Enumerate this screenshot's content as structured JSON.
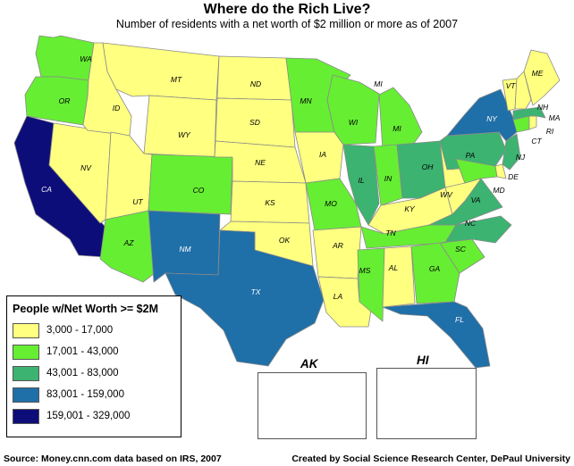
{
  "header": {
    "title": "Where do the Rich Live?",
    "subtitle": "Number of residents with a net worth of $2 million or more as of 2007"
  },
  "colors": {
    "c1": "#ffff80",
    "c2": "#66ee33",
    "c3": "#3cb371",
    "c4": "#1f6fa8",
    "c5": "#0d0d7a",
    "stroke": "#8a8a8a"
  },
  "legend": {
    "title": "People w/Net Worth >= $2M",
    "items": [
      {
        "label": "3,000 - 17,000",
        "cls": "c1"
      },
      {
        "label": "17,001 - 43,000",
        "cls": "c2"
      },
      {
        "label": "43,001 - 83,000",
        "cls": "c3"
      },
      {
        "label": "83,001 - 159,000",
        "cls": "c4"
      },
      {
        "label": "159,001 - 329,000",
        "cls": "c5"
      }
    ]
  },
  "insets": {
    "ak_label": "AK",
    "hi_label": "HI"
  },
  "states": [
    {
      "code": "WA",
      "cls": "c2"
    },
    {
      "code": "OR",
      "cls": "c2"
    },
    {
      "code": "CA",
      "cls": "c5"
    },
    {
      "code": "NV",
      "cls": "c1"
    },
    {
      "code": "ID",
      "cls": "c1"
    },
    {
      "code": "MT",
      "cls": "c1"
    },
    {
      "code": "WY",
      "cls": "c1"
    },
    {
      "code": "UT",
      "cls": "c1"
    },
    {
      "code": "AZ",
      "cls": "c2"
    },
    {
      "code": "CO",
      "cls": "c2"
    },
    {
      "code": "NM",
      "cls": "c4"
    },
    {
      "code": "ND",
      "cls": "c1"
    },
    {
      "code": "SD",
      "cls": "c1"
    },
    {
      "code": "NE",
      "cls": "c1"
    },
    {
      "code": "KS",
      "cls": "c1"
    },
    {
      "code": "OK",
      "cls": "c1"
    },
    {
      "code": "TX",
      "cls": "c4"
    },
    {
      "code": "MN",
      "cls": "c2"
    },
    {
      "code": "IA",
      "cls": "c1"
    },
    {
      "code": "MO",
      "cls": "c2"
    },
    {
      "code": "AR",
      "cls": "c1"
    },
    {
      "code": "LA",
      "cls": "c1"
    },
    {
      "code": "WI",
      "cls": "c2"
    },
    {
      "code": "IL",
      "cls": "c3"
    },
    {
      "code": "MI",
      "cls": "c2"
    },
    {
      "code": "IN",
      "cls": "c2"
    },
    {
      "code": "OH",
      "cls": "c3"
    },
    {
      "code": "KY",
      "cls": "c1"
    },
    {
      "code": "TN",
      "cls": "c2"
    },
    {
      "code": "MS",
      "cls": "c2"
    },
    {
      "code": "AL",
      "cls": "c1"
    },
    {
      "code": "GA",
      "cls": "c2"
    },
    {
      "code": "FL",
      "cls": "c4"
    },
    {
      "code": "SC",
      "cls": "c2"
    },
    {
      "code": "NC",
      "cls": "c3"
    },
    {
      "code": "VA",
      "cls": "c3"
    },
    {
      "code": "WV",
      "cls": "c1"
    },
    {
      "code": "PA",
      "cls": "c3"
    },
    {
      "code": "NY",
      "cls": "c4"
    },
    {
      "code": "MD",
      "cls": "c2"
    },
    {
      "code": "DE",
      "cls": "c1"
    },
    {
      "code": "NJ",
      "cls": "c3"
    },
    {
      "code": "CT",
      "cls": "c2"
    },
    {
      "code": "RI",
      "cls": "c1"
    },
    {
      "code": "MA",
      "cls": "c3"
    },
    {
      "code": "VT",
      "cls": "c1"
    },
    {
      "code": "NH",
      "cls": "c1"
    },
    {
      "code": "ME",
      "cls": "c1"
    },
    {
      "code": "AK",
      "cls": "c1"
    },
    {
      "code": "HI",
      "cls": "c1"
    }
  ],
  "extra_labels": {
    "MI_UP": "MI"
  },
  "footer": {
    "source": "Source: Money.cnn.com data based on IRS, 2007",
    "credit": "Created by Social Science Research Center, DePaul University"
  }
}
